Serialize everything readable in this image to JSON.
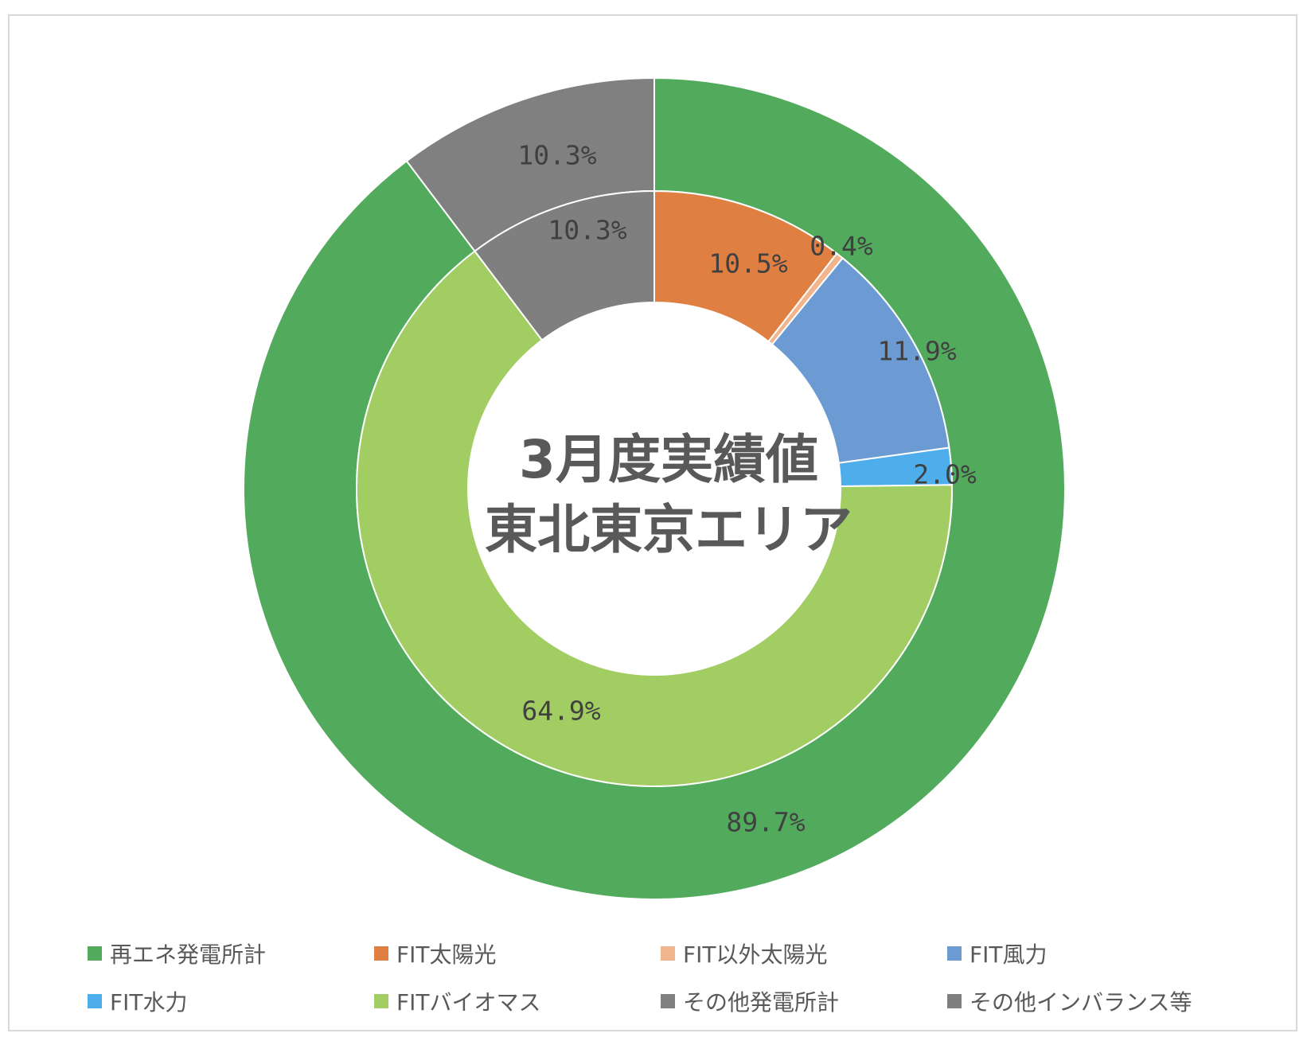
{
  "chart_data": {
    "type": "pie",
    "title": "3月度実績値\n東北東京エリア",
    "title_lines": [
      "3月度実績値",
      "東北東京エリア"
    ],
    "legend_placement": "bottom",
    "outer_ring": {
      "categories": [
        "再エネ発電所計",
        "その他発電所計"
      ],
      "values": [
        89.7,
        10.3
      ],
      "labels": [
        "89.7%",
        "10.3%"
      ],
      "colors": [
        "#52ab5c",
        "#808080"
      ]
    },
    "inner_ring": {
      "categories": [
        "FIT太陽光",
        "FIT以外太陽光",
        "FIT風力",
        "FIT水力",
        "FITバイオマス",
        "その他インバランス等"
      ],
      "values": [
        10.5,
        0.4,
        11.9,
        2.0,
        64.9,
        10.3
      ],
      "labels": [
        "10.5%",
        "0.4%",
        "11.9%",
        "2.0%",
        "64.9%",
        "10.3%"
      ],
      "colors": [
        "#e07f42",
        "#f2b48d",
        "#6b9bd2",
        "#4eaeeb",
        "#a1cd62",
        "#7f7f7f"
      ]
    },
    "legend": [
      {
        "label": "再エネ発電所計",
        "color": "#52ab5c"
      },
      {
        "label": "FIT太陽光",
        "color": "#e07f42"
      },
      {
        "label": "FIT以外太陽光",
        "color": "#f2b48d"
      },
      {
        "label": "FIT風力",
        "color": "#6b9bd2"
      },
      {
        "label": "FIT水力",
        "color": "#4eaeeb"
      },
      {
        "label": "FITバイオマス",
        "color": "#a1cd62"
      },
      {
        "label": "その他発電所計",
        "color": "#808080"
      },
      {
        "label": "その他インバランス等",
        "color": "#7f7f7f"
      }
    ]
  }
}
